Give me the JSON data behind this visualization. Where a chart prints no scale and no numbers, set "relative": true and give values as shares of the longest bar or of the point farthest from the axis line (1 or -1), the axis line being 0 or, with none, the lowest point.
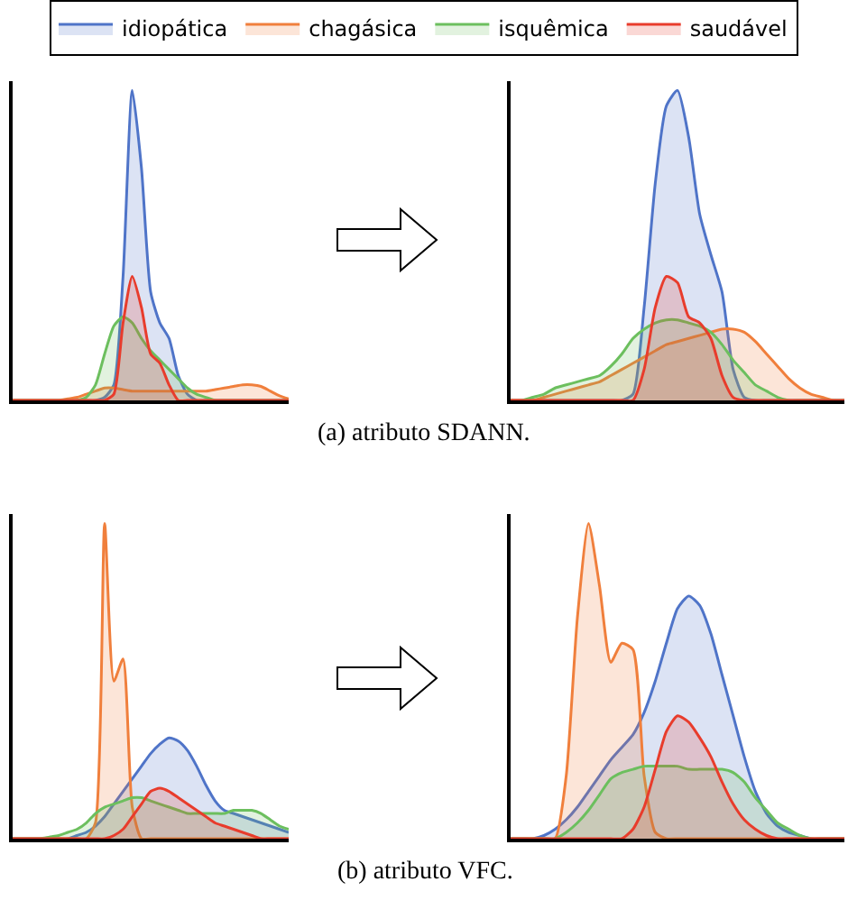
{
  "chart_data": [
    {
      "type": "area",
      "relative": true,
      "legend": "top",
      "annotations": [
        "(a) atributo SDANN."
      ],
      "categories": [
        null,
        null,
        null,
        null,
        null,
        null,
        null,
        null,
        null,
        null,
        null,
        null,
        null,
        null,
        null,
        null,
        null,
        null,
        null,
        null,
        null,
        null,
        null,
        null,
        null,
        null,
        null,
        null,
        null,
        null,
        null
      ],
      "series": [
        {
          "name": "idiopática",
          "color": "#4f74c8",
          "values": [
            0,
            0,
            0,
            0,
            0,
            0,
            0,
            0,
            0,
            0,
            0.01,
            0.05,
            0.4,
            1.0,
            0.75,
            0.35,
            0.25,
            0.2,
            0.08,
            0.02,
            0,
            0,
            0,
            0,
            0,
            0,
            0,
            0,
            0,
            0,
            0
          ]
        },
        {
          "name": "chagásica",
          "color": "#f07f3c",
          "values": [
            0,
            0,
            0,
            0,
            0,
            0,
            0.005,
            0.01,
            0.02,
            0.03,
            0.04,
            0.04,
            0.035,
            0.03,
            0.03,
            0.03,
            0.03,
            0.03,
            0.03,
            0.03,
            0.03,
            0.03,
            0.035,
            0.04,
            0.045,
            0.05,
            0.05,
            0.045,
            0.03,
            0.015,
            0.005
          ]
        },
        {
          "name": "isquêmica",
          "color": "#6cbf5e",
          "values": [
            0,
            0,
            0,
            0,
            0,
            0,
            0,
            0,
            0.01,
            0.05,
            0.15,
            0.24,
            0.27,
            0.25,
            0.2,
            0.16,
            0.13,
            0.1,
            0.07,
            0.04,
            0.02,
            0.01,
            0,
            0,
            0,
            0,
            0,
            0,
            0,
            0,
            0
          ]
        },
        {
          "name": "saudável",
          "color": "#e83c2c",
          "values": [
            0,
            0,
            0,
            0,
            0,
            0,
            0,
            0,
            0,
            0,
            0,
            0.02,
            0.25,
            0.4,
            0.3,
            0.15,
            0.12,
            0.05,
            0,
            0,
            0,
            0,
            0,
            0,
            0,
            0,
            0,
            0,
            0,
            0,
            0
          ]
        }
      ]
    },
    {
      "type": "area",
      "relative": true,
      "categories": [
        null,
        null,
        null,
        null,
        null,
        null,
        null,
        null,
        null,
        null,
        null,
        null,
        null,
        null,
        null,
        null,
        null,
        null,
        null,
        null,
        null,
        null,
        null,
        null,
        null,
        null,
        null,
        null,
        null,
        null,
        null
      ],
      "series": [
        {
          "color": "#4f74c8",
          "values": [
            0,
            0,
            0,
            0,
            0,
            0,
            0,
            0,
            0,
            0,
            0,
            0.02,
            0.3,
            0.7,
            0.95,
            1.0,
            0.85,
            0.6,
            0.47,
            0.35,
            0.1,
            0.01,
            0,
            0,
            0,
            0,
            0,
            0,
            0,
            0,
            0
          ]
        },
        {
          "color": "#f07f3c",
          "values": [
            0,
            0,
            0,
            0.01,
            0.02,
            0.03,
            0.04,
            0.05,
            0.06,
            0.08,
            0.1,
            0.12,
            0.14,
            0.16,
            0.18,
            0.19,
            0.2,
            0.21,
            0.22,
            0.23,
            0.23,
            0.22,
            0.19,
            0.15,
            0.11,
            0.07,
            0.04,
            0.02,
            0.01,
            0,
            0
          ]
        },
        {
          "color": "#6cbf5e",
          "values": [
            0,
            0,
            0.01,
            0.02,
            0.04,
            0.05,
            0.06,
            0.07,
            0.08,
            0.11,
            0.15,
            0.2,
            0.23,
            0.25,
            0.26,
            0.26,
            0.25,
            0.24,
            0.22,
            0.18,
            0.13,
            0.09,
            0.05,
            0.03,
            0.01,
            0,
            0,
            0,
            0,
            0,
            0
          ]
        },
        {
          "color": "#e83c2c",
          "values": [
            0,
            0,
            0,
            0,
            0,
            0,
            0,
            0,
            0,
            0,
            0,
            0,
            0.1,
            0.3,
            0.4,
            0.38,
            0.27,
            0.25,
            0.2,
            0.08,
            0.01,
            0,
            0,
            0,
            0,
            0,
            0,
            0,
            0,
            0,
            0
          ]
        }
      ]
    },
    {
      "type": "area",
      "relative": true,
      "annotations": [
        "(b) atributo VFC."
      ],
      "categories": [
        null,
        null,
        null,
        null,
        null,
        null,
        null,
        null,
        null,
        null,
        null,
        null,
        null,
        null,
        null,
        null,
        null,
        null,
        null,
        null,
        null,
        null,
        null,
        null,
        null,
        null,
        null,
        null,
        null,
        null,
        null
      ],
      "series": [
        {
          "color": "#4f74c8",
          "values": [
            0,
            0,
            0,
            0,
            0,
            0,
            0,
            0.01,
            0.02,
            0.04,
            0.07,
            0.11,
            0.15,
            0.19,
            0.23,
            0.27,
            0.3,
            0.32,
            0.31,
            0.28,
            0.23,
            0.17,
            0.12,
            0.09,
            0.08,
            0.07,
            0.06,
            0.05,
            0.04,
            0.03,
            0.02
          ]
        },
        {
          "color": "#f07f3c",
          "values": [
            0,
            0,
            0,
            0,
            0,
            0,
            0,
            0,
            0,
            0.05,
            1.0,
            0.5,
            0.57,
            0.1,
            0,
            0,
            0,
            0,
            0,
            0,
            0,
            0,
            0,
            0,
            0,
            0,
            0,
            0,
            0,
            0,
            0
          ]
        },
        {
          "color": "#6cbf5e",
          "values": [
            0,
            0,
            0,
            0,
            0.005,
            0.01,
            0.02,
            0.03,
            0.05,
            0.08,
            0.1,
            0.11,
            0.12,
            0.13,
            0.13,
            0.12,
            0.11,
            0.1,
            0.09,
            0.08,
            0.08,
            0.08,
            0.08,
            0.08,
            0.09,
            0.09,
            0.09,
            0.08,
            0.06,
            0.04,
            0.03
          ]
        },
        {
          "color": "#e83c2c",
          "values": [
            0,
            0,
            0,
            0,
            0,
            0,
            0,
            0,
            0,
            0,
            0,
            0.01,
            0.03,
            0.07,
            0.11,
            0.15,
            0.16,
            0.15,
            0.13,
            0.11,
            0.09,
            0.07,
            0.05,
            0.04,
            0.03,
            0.02,
            0.01,
            0,
            0,
            0,
            0
          ]
        }
      ]
    },
    {
      "type": "area",
      "relative": true,
      "categories": [
        null,
        null,
        null,
        null,
        null,
        null,
        null,
        null,
        null,
        null,
        null,
        null,
        null,
        null,
        null,
        null,
        null,
        null,
        null,
        null,
        null,
        null,
        null,
        null,
        null,
        null,
        null,
        null,
        null,
        null,
        null
      ],
      "series": [
        {
          "color": "#4f74c8",
          "values": [
            0,
            0,
            0,
            0.01,
            0.03,
            0.06,
            0.1,
            0.15,
            0.2,
            0.25,
            0.29,
            0.33,
            0.4,
            0.5,
            0.62,
            0.73,
            0.77,
            0.74,
            0.65,
            0.52,
            0.39,
            0.26,
            0.15,
            0.08,
            0.04,
            0.02,
            0.01,
            0,
            0,
            0,
            0
          ]
        },
        {
          "color": "#f07f3c",
          "values": [
            0,
            0,
            0,
            0,
            0,
            0.2,
            0.7,
            1.0,
            0.8,
            0.56,
            0.62,
            0.6,
            0.2,
            0.02,
            0,
            0,
            0,
            0,
            0,
            0,
            0,
            0,
            0,
            0,
            0,
            0,
            0,
            0,
            0,
            0,
            0
          ]
        },
        {
          "color": "#6cbf5e",
          "values": [
            0,
            0,
            0,
            0,
            0,
            0.02,
            0.05,
            0.09,
            0.14,
            0.19,
            0.21,
            0.22,
            0.23,
            0.23,
            0.23,
            0.23,
            0.22,
            0.22,
            0.22,
            0.22,
            0.21,
            0.18,
            0.13,
            0.09,
            0.05,
            0.03,
            0.01,
            0,
            0,
            0,
            0
          ]
        },
        {
          "color": "#e83c2c",
          "values": [
            0,
            0,
            0,
            0,
            0,
            0,
            0,
            0,
            0,
            0,
            0,
            0.03,
            0.1,
            0.22,
            0.34,
            0.39,
            0.37,
            0.32,
            0.26,
            0.18,
            0.11,
            0.06,
            0.03,
            0.01,
            0,
            0,
            0,
            0,
            0,
            0,
            0
          ]
        }
      ]
    }
  ]
}
